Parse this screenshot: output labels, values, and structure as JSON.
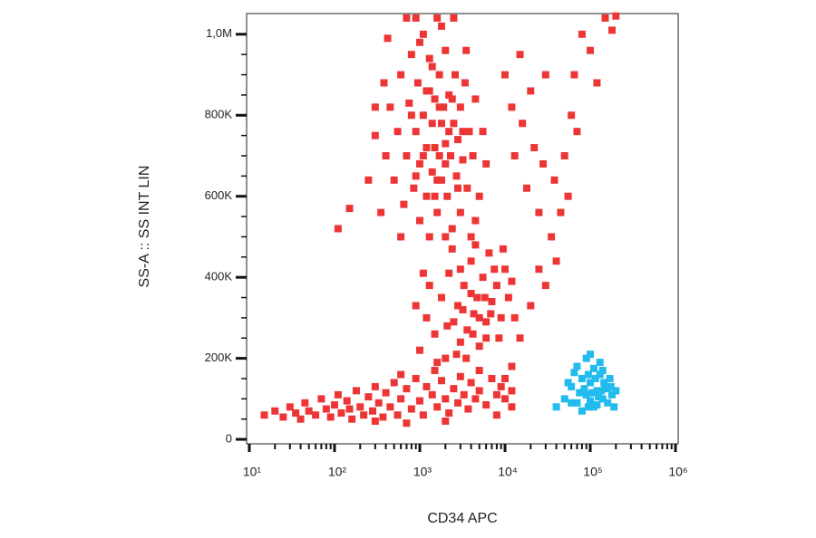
{
  "chart_data": {
    "type": "scatter",
    "xlabel": "CD34 APC",
    "ylabel": "SS-A :: SS INT LIN",
    "xscale": "log",
    "xlim": [
      9.3,
      1076000
    ],
    "ylim": [
      -11000,
      1051000
    ],
    "xticks": [
      {
        "value": 10,
        "label": "10¹"
      },
      {
        "value": 100,
        "label": "10²"
      },
      {
        "value": 1000,
        "label": "10³"
      },
      {
        "value": 10000,
        "label": "10⁴"
      },
      {
        "value": 100000,
        "label": "10⁵"
      },
      {
        "value": 1000000,
        "label": "10⁶"
      }
    ],
    "x_minor_ticks": [
      20,
      30,
      40,
      50,
      60,
      70,
      80,
      90,
      200,
      300,
      400,
      500,
      600,
      700,
      800,
      900,
      2000,
      3000,
      4000,
      5000,
      6000,
      7000,
      8000,
      9000,
      20000,
      30000,
      40000,
      50000,
      60000,
      70000,
      80000,
      90000,
      200000,
      300000,
      400000,
      500000,
      600000,
      700000,
      800000,
      900000
    ],
    "yticks": [
      0,
      {
        "value": 200000,
        "label": "200K"
      },
      {
        "value": 400000,
        "label": "400K"
      },
      {
        "value": 600000,
        "label": "600K"
      },
      {
        "value": 800000,
        "label": "800K"
      },
      {
        "value": 1000000,
        "label": "1,0M"
      }
    ],
    "y_minor_ticks": [
      50000,
      100000,
      150000,
      250000,
      300000,
      350000,
      450000,
      500000,
      550000,
      650000,
      700000,
      750000,
      850000,
      900000,
      950000
    ],
    "series": [
      {
        "color": "#ee3535",
        "x": [
          15,
          20,
          25,
          30,
          35,
          40,
          45,
          50,
          60,
          70,
          80,
          90,
          100,
          110,
          120,
          140,
          160,
          180,
          200,
          220,
          250,
          280,
          300,
          330,
          370,
          400,
          450,
          500,
          550,
          600,
          700,
          800,
          900,
          1000,
          1100,
          1200,
          1400,
          1600,
          1800,
          2000,
          2200,
          2500,
          2800,
          3000,
          3300,
          3700,
          4000,
          4500,
          5000,
          6000,
          7000,
          8000,
          9000,
          10000,
          12000,
          300,
          150,
          700,
          2000,
          1500,
          600,
          5000,
          1000,
          1200,
          1500,
          1800,
          2000,
          2200,
          2500,
          2800,
          3000,
          3300,
          3600,
          4000,
          4300,
          4700,
          5000,
          5500,
          6000,
          6500,
          7000,
          8000,
          9000,
          10000,
          11000,
          12000,
          1300,
          1600,
          2400,
          3000,
          3500,
          4000,
          5000,
          6000,
          7500,
          8500,
          900,
          1100,
          2700,
          4500,
          9500,
          3200,
          5800,
          2100,
          4200,
          6800,
          13000,
          400,
          450,
          500,
          550,
          600,
          650,
          700,
          750,
          800,
          850,
          900,
          950,
          1000,
          1000,
          1100,
          1100,
          1200,
          1200,
          1300,
          1300,
          1400,
          1400,
          1500,
          1500,
          1600,
          1600,
          1700,
          1700,
          1800,
          1800,
          1900,
          2000,
          2000,
          2100,
          2200,
          2300,
          2400,
          2500,
          2600,
          2700,
          2800,
          3000,
          3000,
          3200,
          3400,
          3600,
          3800,
          4000,
          4200,
          4500,
          5000,
          5500,
          6000,
          350,
          380,
          300,
          420,
          600,
          700,
          900,
          1300,
          2000,
          2500,
          1000,
          1800,
          3500,
          4500,
          800,
          1200,
          1600,
          2200,
          2800,
          1400,
          2000,
          1100,
          1700,
          2400,
          3200,
          900,
          1500,
          110,
          150,
          250,
          300,
          10000,
          12000,
          13000,
          15000,
          16000,
          18000,
          20000,
          22000,
          25000,
          28000,
          30000,
          35000,
          38000,
          40000,
          45000,
          50000,
          55000,
          60000,
          65000,
          70000,
          80000,
          100000,
          120000,
          150000,
          180000,
          200000,
          30000,
          20000,
          15000,
          25000,
          12000,
          10000,
          8000,
          12000
        ],
        "values": [
          60000,
          70000,
          55000,
          80000,
          65000,
          50000,
          90000,
          70000,
          60000,
          100000,
          75000,
          55000,
          85000,
          110000,
          65000,
          95000,
          50000,
          120000,
          80000,
          60000,
          105000,
          70000,
          130000,
          90000,
          55000,
          115000,
          80000,
          140000,
          60000,
          100000,
          125000,
          75000,
          150000,
          95000,
          60000,
          130000,
          110000,
          80000,
          145000,
          100000,
          65000,
          125000,
          90000,
          155000,
          110000,
          75000,
          140000,
          100000,
          120000,
          85000,
          150000,
          110000,
          130000,
          100000,
          120000,
          45000,
          75000,
          40000,
          45000,
          170000,
          160000,
          170000,
          220000,
          300000,
          260000,
          350000,
          200000,
          410000,
          290000,
          330000,
          240000,
          380000,
          270000,
          440000,
          310000,
          350000,
          230000,
          400000,
          290000,
          460000,
          340000,
          380000,
          300000,
          420000,
          350000,
          390000,
          380000,
          190000,
          470000,
          420000,
          200000,
          360000,
          300000,
          250000,
          420000,
          250000,
          330000,
          410000,
          210000,
          480000,
          470000,
          320000,
          350000,
          280000,
          260000,
          310000,
          300000,
          700000,
          820000,
          640000,
          760000,
          900000,
          580000,
          700000,
          830000,
          950000,
          620000,
          760000,
          880000,
          540000,
          680000,
          800000,
          1000000,
          720000,
          600000,
          860000,
          940000,
          660000,
          780000,
          720000,
          840000,
          560000,
          1040000,
          700000,
          900000,
          780000,
          640000,
          820000,
          730000,
          960000,
          600000,
          850000,
          700000,
          520000,
          780000,
          900000,
          650000,
          740000,
          820000,
          560000,
          690000,
          880000,
          620000,
          760000,
          500000,
          700000,
          840000,
          600000,
          760000,
          680000,
          560000,
          880000,
          750000,
          990000,
          500000,
          1040000,
          1040000,
          500000,
          500000,
          1040000,
          980000,
          1020000,
          960000,
          540000,
          800000,
          860000,
          640000,
          760000,
          620000,
          920000,
          680000,
          700000,
          820000,
          840000,
          760000,
          650000,
          600000,
          520000,
          570000,
          640000,
          820000,
          900000,
          820000,
          700000,
          950000,
          780000,
          620000,
          860000,
          720000,
          560000,
          680000,
          900000,
          500000,
          640000,
          440000,
          560000,
          700000,
          600000,
          800000,
          900000,
          760000,
          1000000,
          960000,
          880000,
          1040000,
          1010000,
          1045000,
          380000,
          330000,
          250000,
          420000,
          180000,
          150000,
          60000,
          80000
        ]
      },
      {
        "color": "#22bbee",
        "x": [
          50000,
          60000,
          70000,
          80000,
          90000,
          100000,
          110000,
          120000,
          130000,
          140000,
          150000,
          160000,
          170000,
          180000,
          200000,
          70000,
          90000,
          110000,
          130000,
          60000,
          80000,
          100000,
          120000,
          140000,
          160000,
          85000,
          95000,
          105000,
          115000,
          75000,
          55000,
          65000,
          40000,
          190000,
          125000,
          145000,
          100000,
          175000,
          95000,
          135000
        ],
        "values": [
          100000,
          130000,
          90000,
          150000,
          110000,
          140000,
          80000,
          120000,
          160000,
          100000,
          130000,
          90000,
          150000,
          110000,
          120000,
          180000,
          200000,
          175000,
          190000,
          90000,
          70000,
          95000,
          85000,
          170000,
          125000,
          125000,
          160000,
          115000,
          150000,
          115000,
          140000,
          165000,
          80000,
          80000,
          105000,
          140000,
          210000,
          130000,
          80000,
          120000
        ]
      }
    ]
  }
}
